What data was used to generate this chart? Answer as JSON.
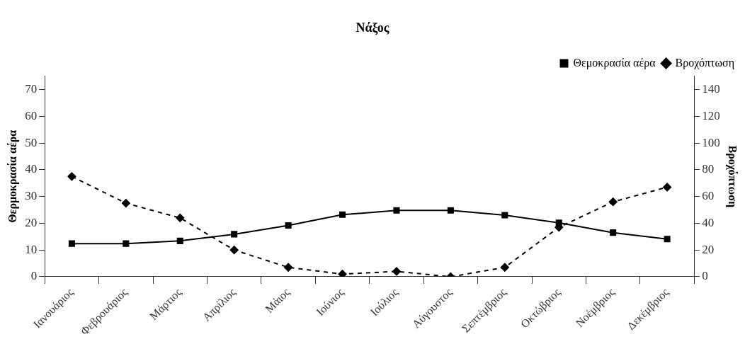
{
  "chart_data": {
    "type": "line",
    "title": "Νάξος",
    "ylabel": "Θερμοκρασία αέρα",
    "y2label": "Βροχόπτωση",
    "categories": [
      "Ιανουάριος",
      "Φεβρουάριος",
      "Μάρτιος",
      "Απρίλιος",
      "Μάιος",
      "Ιούνιος",
      "Ιούλιος",
      "Αύγουστος",
      "Σεπτέμβριος",
      "Οκτώβριος",
      "Νοέμβριος",
      "Δεκέμβριος"
    ],
    "series": [
      {
        "name": "Θεμοκρασία αέρα",
        "color": "#000000",
        "marker": "square",
        "line_style": "solid",
        "values": [
          12.4,
          12.4,
          13.4,
          15.9,
          19.2,
          23.2,
          24.8,
          24.8,
          23.0,
          20.2,
          16.5,
          14.1
        ]
      },
      {
        "name": "Βροχόπτωση",
        "color": "#000000",
        "marker": "diamond",
        "line_style": "dashed",
        "axis": "y2",
        "values": [
          75,
          55,
          44,
          20,
          7,
          2,
          4,
          0,
          7,
          37,
          56,
          67
        ]
      }
    ],
    "ylim": [
      0,
      75
    ],
    "yticks": [
      0,
      10,
      20,
      30,
      40,
      50,
      60,
      70
    ],
    "y2lim": [
      0,
      150
    ],
    "y2ticks": [
      0,
      20,
      40,
      60,
      80,
      100,
      120,
      140
    ],
    "grid": false,
    "legend": "top right"
  }
}
